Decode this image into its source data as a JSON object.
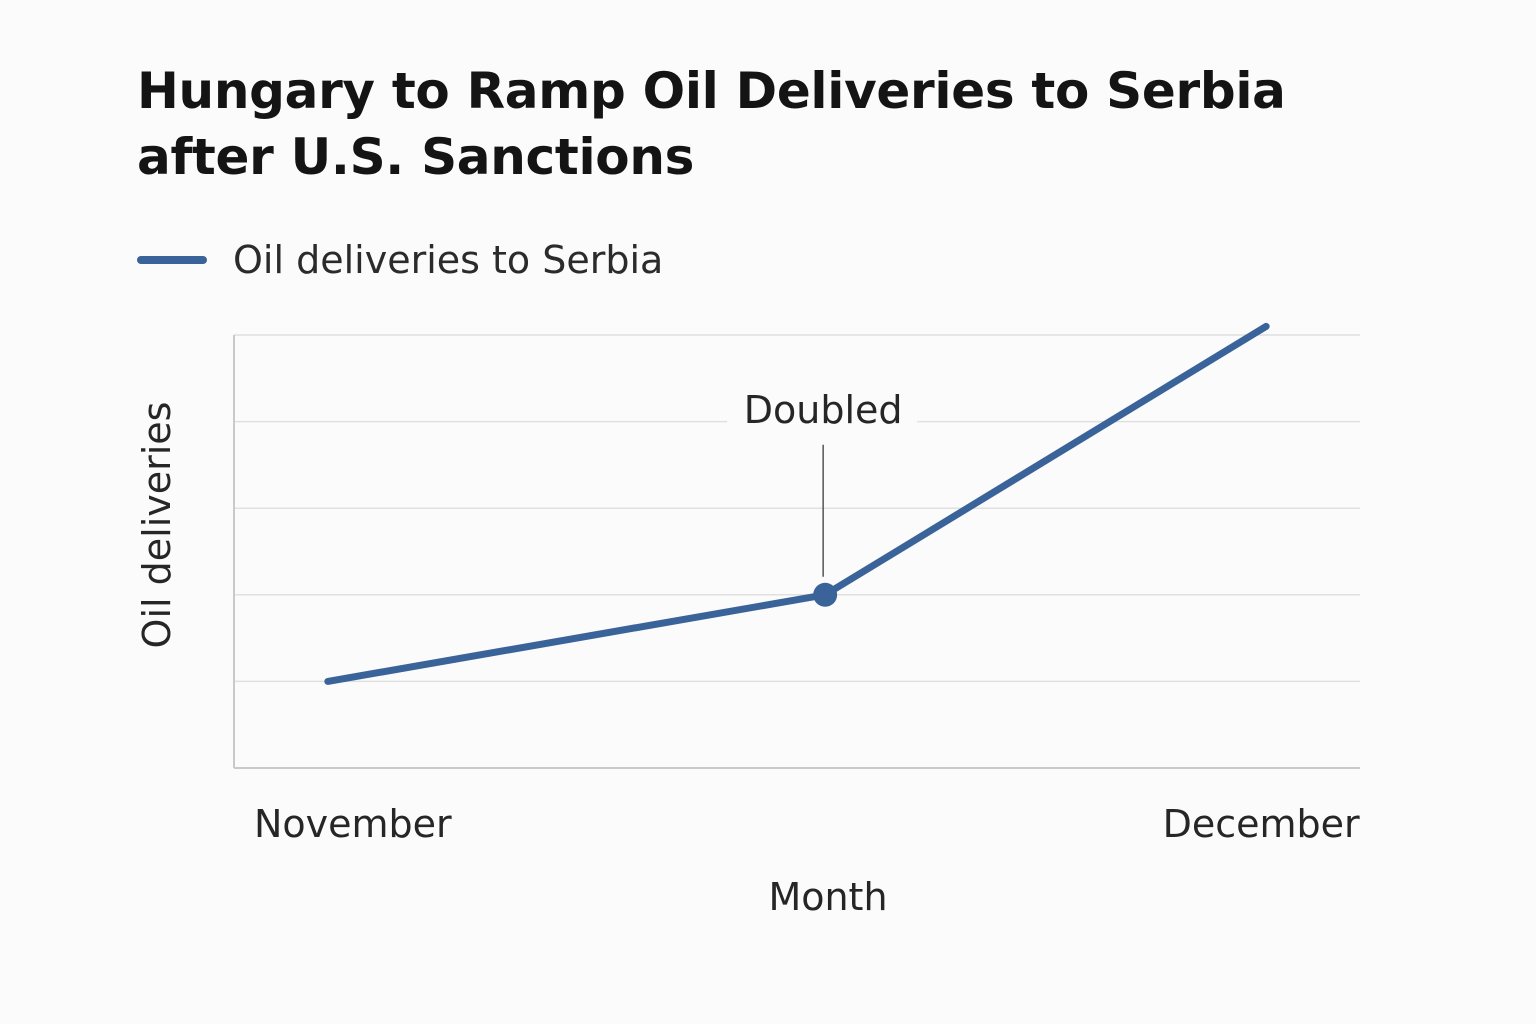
{
  "chart_data": {
    "type": "line",
    "title": "Hungary to Ramp Oil Deliveries to Serbia after U.S. Sanctions",
    "title_lines": [
      "Hungary to Ramp Oil Deliveries to Serbia",
      "after U.S. Sanctions"
    ],
    "xlabel": "Month",
    "ylabel": "Oil deliveries",
    "x_tick_labels": [
      "November",
      "December"
    ],
    "x": [
      0,
      0.53,
      1
    ],
    "series": [
      {
        "name": "Oil deliveries to Serbia",
        "color": "#3a6399",
        "values": [
          1,
          2,
          5.1
        ]
      }
    ],
    "ylim": [
      0,
      5
    ],
    "xlim": [
      -0.1,
      1.1
    ],
    "grid": true,
    "legend_position": "top-left",
    "annotations": [
      {
        "text": "Doubled",
        "point_index": 1
      }
    ]
  }
}
